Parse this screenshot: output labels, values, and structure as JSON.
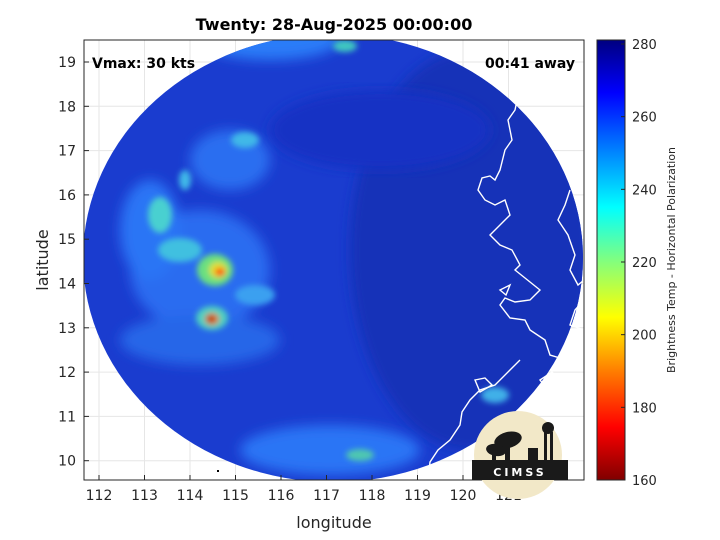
{
  "title": "Twenty: 28-Aug-2025 00:00:00",
  "annotations": {
    "vmax": "Vmax: 30 kts",
    "away": "00:41 away"
  },
  "axes": {
    "xlabel": "longitude",
    "ylabel": "latitude",
    "xticks": [
      "112",
      "113",
      "114",
      "115",
      "116",
      "117",
      "118",
      "119",
      "120",
      "121"
    ],
    "yticks": [
      "19",
      "18",
      "17",
      "16",
      "15",
      "14",
      "13",
      "12",
      "11",
      "10"
    ]
  },
  "colorbar": {
    "label": "Brightness Temp - Horizontal Polarization",
    "ticks": [
      "280",
      "260",
      "240",
      "220",
      "200",
      "180",
      "160"
    ],
    "range": [
      160,
      280
    ],
    "colors": [
      "#800000",
      "#ff0000",
      "#ff8000",
      "#ffff00",
      "#80ff80",
      "#00ffff",
      "#0080ff",
      "#0000ff",
      "#000080"
    ]
  },
  "logo": {
    "text": "CIMSS"
  },
  "colors": {
    "background_field": "#1a3fd6",
    "coast": "#ffffff"
  }
}
